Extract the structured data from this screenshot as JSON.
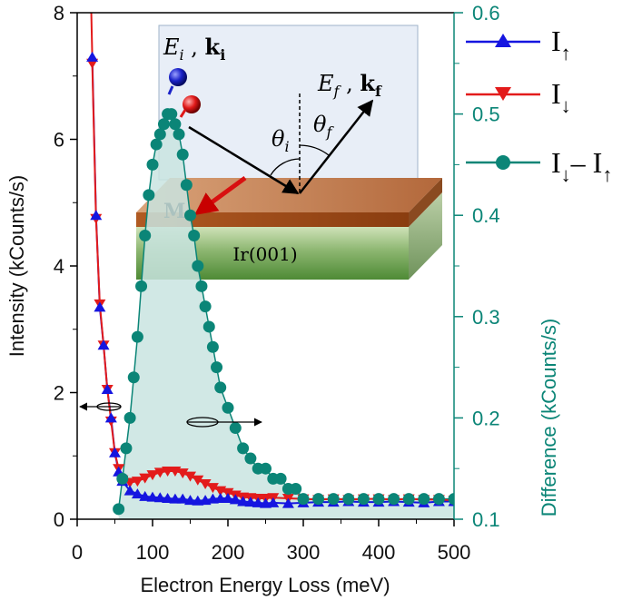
{
  "chart_data": {
    "type": "line",
    "title": "",
    "xlabel": "Electron Energy Loss (meV)",
    "ylabel": "Intensity (kCounts/s)",
    "y2label": "Difference (kCounts/s)",
    "xlim": [
      0,
      500
    ],
    "ylim": [
      0,
      8
    ],
    "y2lim": [
      0.1,
      0.6
    ],
    "x_ticks": [
      "0",
      "100",
      "200",
      "300",
      "400",
      "500"
    ],
    "y_ticks": [
      "0",
      "2",
      "4",
      "6",
      "8"
    ],
    "y2_ticks": [
      "0.1",
      "0.2",
      "0.3",
      "0.4",
      "0.5",
      "0.6"
    ],
    "colors": {
      "up": "#1515e0",
      "down": "#e31b1b",
      "diff": "#0b8577",
      "diff_fill": "#c9e4e1"
    },
    "series": [
      {
        "name": "I_up",
        "axis": "left",
        "marker": "triangle-up",
        "x": [
          20,
          25,
          30,
          35,
          40,
          45,
          50,
          55,
          60,
          70,
          80,
          90,
          100,
          110,
          120,
          130,
          140,
          150,
          160,
          170,
          180,
          190,
          200,
          210,
          220,
          230,
          240,
          250,
          260,
          280,
          300,
          320,
          340,
          360,
          380,
          400,
          420,
          440,
          460,
          480,
          500
        ],
        "values": [
          7.3,
          4.8,
          3.35,
          2.75,
          2.05,
          1.6,
          1.05,
          0.75,
          0.6,
          0.45,
          0.4,
          0.36,
          0.35,
          0.34,
          0.33,
          0.32,
          0.32,
          0.3,
          0.29,
          0.3,
          0.32,
          0.33,
          0.33,
          0.31,
          0.28,
          0.27,
          0.26,
          0.25,
          0.26,
          0.25,
          0.26,
          0.27,
          0.27,
          0.28,
          0.27,
          0.27,
          0.28,
          0.27,
          0.26,
          0.28,
          0.28
        ]
      },
      {
        "name": "I_down",
        "axis": "left",
        "marker": "triangle-down",
        "x": [
          20,
          25,
          30,
          35,
          40,
          45,
          50,
          55,
          60,
          70,
          80,
          90,
          100,
          110,
          120,
          130,
          140,
          150,
          160,
          170,
          180,
          190,
          200,
          210,
          220,
          230,
          240,
          250,
          260,
          280,
          300,
          320,
          340,
          360,
          380,
          400,
          420,
          440,
          460,
          480,
          500
        ],
        "values": [
          7.2,
          4.75,
          3.4,
          2.75,
          2.05,
          1.55,
          1.05,
          0.8,
          0.62,
          0.58,
          0.6,
          0.65,
          0.7,
          0.74,
          0.76,
          0.76,
          0.73,
          0.68,
          0.62,
          0.56,
          0.5,
          0.45,
          0.42,
          0.38,
          0.35,
          0.34,
          0.33,
          0.33,
          0.34,
          0.33,
          0.32,
          0.31,
          0.32,
          0.31,
          0.32,
          0.32,
          0.31,
          0.32,
          0.31,
          0.31,
          0.3
        ]
      },
      {
        "name": "I_down - I_up",
        "axis": "right",
        "marker": "circle",
        "x": [
          55,
          60,
          65,
          70,
          75,
          80,
          85,
          90,
          95,
          100,
          105,
          110,
          115,
          120,
          125,
          130,
          135,
          140,
          145,
          150,
          155,
          160,
          165,
          170,
          175,
          180,
          185,
          190,
          200,
          210,
          220,
          230,
          240,
          250,
          260,
          270,
          280,
          290,
          300,
          320,
          340,
          360,
          380,
          400,
          420,
          440,
          460,
          480,
          500
        ],
        "values": [
          0.11,
          0.14,
          0.17,
          0.2,
          0.24,
          0.28,
          0.33,
          0.38,
          0.42,
          0.45,
          0.47,
          0.48,
          0.49,
          0.5,
          0.5,
          0.49,
          0.48,
          0.46,
          0.43,
          0.4,
          0.38,
          0.35,
          0.33,
          0.31,
          0.29,
          0.27,
          0.25,
          0.23,
          0.21,
          0.19,
          0.17,
          0.16,
          0.15,
          0.15,
          0.14,
          0.14,
          0.13,
          0.13,
          0.12,
          0.12,
          0.12,
          0.12,
          0.12,
          0.12,
          0.12,
          0.12,
          0.12,
          0.12,
          0.12
        ]
      }
    ],
    "legend": {
      "up": {
        "main": "I",
        "sub": "↑"
      },
      "down": {
        "main": "I",
        "sub": "↓"
      },
      "diff": {
        "a": "I",
        "a_sub": "↓",
        "minus": "– ",
        "b": "I",
        "b_sub": "↑"
      }
    },
    "inset": {
      "incident": {
        "e": "E",
        "e_sub": "i",
        "k": "k",
        "k_sub": "i"
      },
      "final": {
        "e": "E",
        "e_sub": "f",
        "k": "k",
        "k_sub": "f"
      },
      "theta_i": {
        "symbol": "θ",
        "sub": "i"
      },
      "theta_f": {
        "symbol": "θ",
        "sub": "f"
      },
      "magnetization": "M",
      "substrate": "Ir(001)"
    }
  }
}
